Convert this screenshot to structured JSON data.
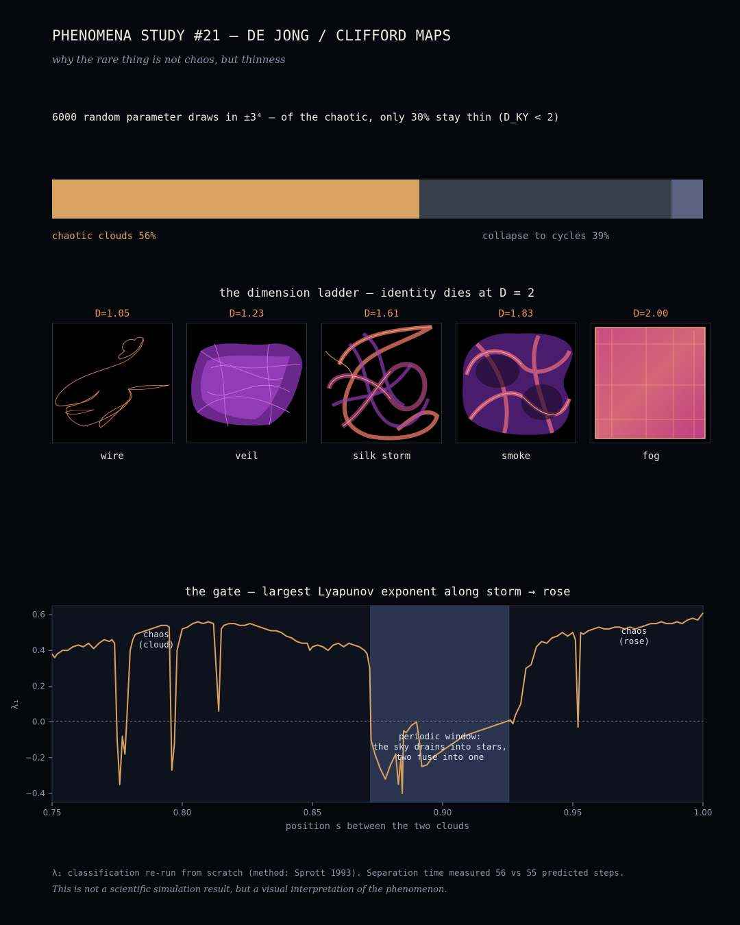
{
  "header": {
    "title": "PHENOMENA STUDY #21 — DE JONG / CLIFFORD MAPS",
    "subtitle": "why the rare thing is not chaos, but thinness"
  },
  "summary": "6000 random parameter draws in ±3⁴  —  of the chaotic, only 30% stay thin (D_KY < 2)",
  "outcome_bar": {
    "segments": [
      {
        "fraction": 0.5642,
        "color": "#d8a360",
        "label": "chaotic clouds 56%"
      },
      {
        "fraction": 0.3874,
        "color": "#374049",
        "label": "collapse to cycles 39%"
      },
      {
        "fraction": 0.0484,
        "color": "#5a6380",
        "label": ""
      }
    ]
  },
  "ladder": {
    "title": "the dimension ladder — identity dies at D = 2",
    "panels": [
      {
        "d": "D=1.05",
        "name": "wire"
      },
      {
        "d": "D=1.23",
        "name": "veil"
      },
      {
        "d": "D=1.61",
        "name": "silk storm"
      },
      {
        "d": "D=1.83",
        "name": "smoke"
      },
      {
        "d": "D=2.00",
        "name": "fog"
      }
    ]
  },
  "gate": {
    "title": "the gate — largest Lyapunov exponent along storm → rose"
  },
  "chart_data": {
    "type": "line",
    "title": "the gate — largest Lyapunov exponent along storm → rose",
    "xlabel": "position s between the two clouds",
    "ylabel": "λ₁",
    "xlim": [
      0.75,
      1.0
    ],
    "ylim": [
      -0.45,
      0.65
    ],
    "xticks": [
      "0.75",
      "0.80",
      "0.85",
      "0.90",
      "0.95",
      "1.00"
    ],
    "yticks": [
      "−0.4",
      "−0.2",
      "0.0",
      "0.2",
      "0.4",
      "0.6"
    ],
    "reference_line_y": 0,
    "shaded_band": [
      0.8723,
      0.9255
    ],
    "series": [
      {
        "color": "#d8a360",
        "x": [
          0.75,
          0.751,
          0.752,
          0.754,
          0.756,
          0.758,
          0.76,
          0.762,
          0.764,
          0.766,
          0.768,
          0.77,
          0.772,
          0.773,
          0.774,
          0.775,
          0.776,
          0.777,
          0.778,
          0.779,
          0.78,
          0.781,
          0.782,
          0.784,
          0.786,
          0.788,
          0.79,
          0.792,
          0.794,
          0.795,
          0.796,
          0.797,
          0.798,
          0.8,
          0.802,
          0.804,
          0.806,
          0.808,
          0.81,
          0.812,
          0.814,
          0.815,
          0.816,
          0.818,
          0.82,
          0.822,
          0.824,
          0.826,
          0.828,
          0.83,
          0.832,
          0.834,
          0.836,
          0.838,
          0.84,
          0.842,
          0.844,
          0.846,
          0.848,
          0.849,
          0.85,
          0.852,
          0.854,
          0.856,
          0.858,
          0.86,
          0.862,
          0.864,
          0.866,
          0.868,
          0.87,
          0.871,
          0.872,
          0.8725,
          0.874,
          0.876,
          0.878,
          0.88,
          0.882,
          0.883,
          0.884,
          0.8845,
          0.885,
          0.886,
          0.888,
          0.89,
          0.891,
          0.892,
          0.894,
          0.896,
          0.898,
          0.9,
          0.902,
          0.904,
          0.906,
          0.908,
          0.91,
          0.912,
          0.914,
          0.916,
          0.918,
          0.92,
          0.922,
          0.924,
          0.926,
          0.927,
          0.928,
          0.93,
          0.932,
          0.934,
          0.936,
          0.938,
          0.94,
          0.942,
          0.944,
          0.946,
          0.948,
          0.95,
          0.951,
          0.952,
          0.953,
          0.954,
          0.956,
          0.958,
          0.96,
          0.962,
          0.964,
          0.966,
          0.968,
          0.97,
          0.972,
          0.974,
          0.976,
          0.978,
          0.98,
          0.982,
          0.984,
          0.986,
          0.988,
          0.99,
          0.992,
          0.994,
          0.996,
          0.998,
          1.0
        ],
        "y": [
          0.38,
          0.36,
          0.38,
          0.4,
          0.4,
          0.42,
          0.43,
          0.42,
          0.44,
          0.41,
          0.44,
          0.46,
          0.45,
          0.46,
          0.44,
          -0.1,
          -0.35,
          -0.08,
          -0.18,
          0.1,
          0.4,
          0.46,
          0.49,
          0.5,
          0.51,
          0.52,
          0.53,
          0.54,
          0.54,
          0.53,
          -0.27,
          -0.12,
          0.4,
          0.52,
          0.53,
          0.55,
          0.56,
          0.55,
          0.56,
          0.55,
          0.06,
          0.52,
          0.54,
          0.55,
          0.55,
          0.54,
          0.54,
          0.55,
          0.54,
          0.53,
          0.52,
          0.51,
          0.51,
          0.5,
          0.48,
          0.47,
          0.45,
          0.44,
          0.44,
          0.4,
          0.42,
          0.43,
          0.42,
          0.4,
          0.43,
          0.44,
          0.42,
          0.44,
          0.43,
          0.42,
          0.4,
          0.38,
          0.3,
          -0.1,
          -0.18,
          -0.26,
          -0.32,
          -0.24,
          -0.18,
          -0.35,
          -0.2,
          -0.4,
          -0.05,
          -0.06,
          -0.02,
          0.0,
          -0.1,
          -0.25,
          -0.24,
          -0.2,
          -0.18,
          -0.16,
          -0.14,
          -0.12,
          -0.1,
          -0.08,
          -0.07,
          -0.06,
          -0.05,
          -0.04,
          -0.03,
          -0.02,
          -0.01,
          0.0,
          0.01,
          -0.01,
          0.04,
          0.1,
          0.3,
          0.32,
          0.42,
          0.45,
          0.44,
          0.47,
          0.48,
          0.5,
          0.48,
          0.5,
          0.46,
          -0.03,
          0.5,
          0.49,
          0.51,
          0.52,
          0.53,
          0.52,
          0.52,
          0.53,
          0.53,
          0.52,
          0.53,
          0.52,
          0.53,
          0.54,
          0.55,
          0.55,
          0.56,
          0.55,
          0.55,
          0.56,
          0.55,
          0.57,
          0.58,
          0.57,
          0.61
        ]
      }
    ],
    "annotations": [
      {
        "x": 0.79,
        "y": 0.46,
        "lines": [
          "chaos",
          "(cloud)"
        ]
      },
      {
        "x": 0.899,
        "y": -0.14,
        "lines": [
          "periodic window:",
          "the sky drains into stars,",
          "two fuse into one"
        ]
      },
      {
        "x": 0.9735,
        "y": 0.48,
        "lines": [
          "chaos",
          "(rose)"
        ]
      }
    ]
  },
  "footer": {
    "note": "λ₁ classification re-run from scratch (method: Sprott 1993). Separation time measured 56 vs 55 predicted steps.",
    "disclaimer": "This is not a scientific simulation result, but a visual interpretation of the phenomenon."
  }
}
